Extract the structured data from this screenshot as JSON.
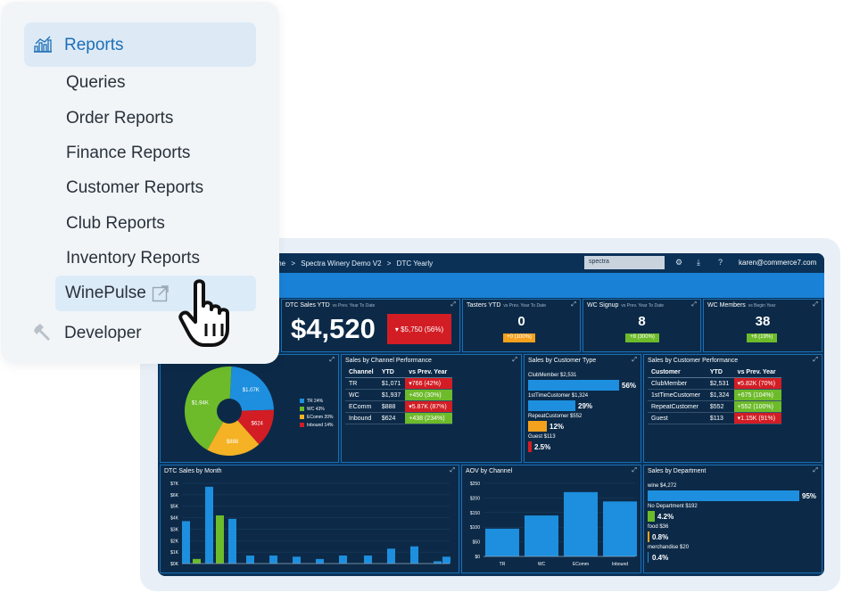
{
  "menu": {
    "header": "Reports",
    "items": [
      "Queries",
      "Order Reports",
      "Finance Reports",
      "Customer Reports",
      "Club Reports",
      "Inventory Reports"
    ],
    "active_item": "WinePulse",
    "footer_item": "Developer"
  },
  "dashboard": {
    "breadcrumb": [
      "me",
      ">",
      "Spectra Winery Demo V2",
      ">",
      "DTC Yearly"
    ],
    "search_value": "spectra",
    "user_email": "karen@commerce7.com",
    "sales_ytd": {
      "title": "DTC Sales YTD",
      "subtitle": "vs Prev. Year To Date",
      "value": "$4,520",
      "change": "▾ $5,750 (56%)"
    },
    "kpis": [
      {
        "title": "Tasters YTD",
        "subtitle": "vs Prev. Year To Date",
        "value": "0",
        "change": "+0 (100%)",
        "color": "#f4a11d"
      },
      {
        "title": "WC Signup",
        "subtitle": "vs Prev. Year To Date",
        "value": "8",
        "change": "+8 (300%)",
        "color": "#6dbb2a"
      },
      {
        "title": "WC Members",
        "subtitle": "vs Begin Year",
        "value": "38",
        "change": "+6 (19%)",
        "color": "#6dbb2a"
      }
    ],
    "pie": {
      "slices": [
        {
          "label": "$1.07K",
          "pct": 24,
          "color": "#1d8fde"
        },
        {
          "label": "$624",
          "pct": 14,
          "color": "#d21d24"
        },
        {
          "label": "$888",
          "pct": 20,
          "color": "#f4b224"
        },
        {
          "label": "$1.94K",
          "pct": 43,
          "color": "#6dbb2a"
        }
      ],
      "legend": [
        {
          "label": "TR 24%",
          "color": "#1d8fde"
        },
        {
          "label": "WC 43%",
          "color": "#6dbb2a"
        },
        {
          "label": "EComm 20%",
          "color": "#f4b224"
        },
        {
          "label": "Inbound 14%",
          "color": "#d21d24"
        }
      ]
    },
    "channel_perf": {
      "title": "Sales by Channel Performance",
      "headers": [
        "Channel",
        "YTD",
        "vs Prev. Year"
      ],
      "rows": [
        {
          "name": "TR",
          "ytd": "$1,071",
          "change": "▾766 (42%)",
          "neg": true
        },
        {
          "name": "WC",
          "ytd": "$1,937",
          "change": "+450 (30%)",
          "neg": false
        },
        {
          "name": "EComm",
          "ytd": "$888",
          "change": "▾5.87K (87%)",
          "neg": true
        },
        {
          "name": "Inbound",
          "ytd": "$624",
          "change": "+438 (234%)",
          "neg": false
        }
      ]
    },
    "customer_type": {
      "title": "Sales by Customer Type",
      "items": [
        {
          "label": "ClubMember $2,531",
          "pct": "56%",
          "color": "#1d8fde"
        },
        {
          "label": "1stTimeCustomer $1,324",
          "pct": "29%",
          "color": "#1d8fde"
        },
        {
          "label": "RepeatCustomer $552",
          "pct": "12%",
          "color": "#f4a11d"
        },
        {
          "label": "Guest $113",
          "pct": "2.5%",
          "color": "#d21d24"
        }
      ]
    },
    "customer_perf": {
      "title": "Sales by Customer Performance",
      "headers": [
        "Customer",
        "YTD",
        "vs Prev. Year"
      ],
      "rows": [
        {
          "name": "ClubMember",
          "ytd": "$2,531",
          "change": "▾5.82K (70%)",
          "neg": true
        },
        {
          "name": "1stTimeCustomer",
          "ytd": "$1,324",
          "change": "+675 (104%)",
          "neg": false
        },
        {
          "name": "RepeatCustomer",
          "ytd": "$552",
          "change": "+552 (100%)",
          "neg": false
        },
        {
          "name": "Guest",
          "ytd": "$113",
          "change": "▾1.15K (91%)",
          "neg": true
        }
      ]
    },
    "department": {
      "title": "Sales by Department",
      "items": [
        {
          "label": "wine $4,272",
          "pct": "95%",
          "color": "#1d8fde"
        },
        {
          "label": "No Department $192",
          "pct": "4.2%",
          "color": "#6dbb2a"
        },
        {
          "label": "food $36",
          "pct": "0.8%",
          "color": "#f4a11d"
        },
        {
          "label": "merchandise $20",
          "pct": "0.4%",
          "color": "#1d8fde"
        }
      ]
    }
  },
  "chart_data": [
    {
      "type": "bar",
      "title": "DTC Sales by Month",
      "yticks": [
        "$0K",
        "$1K",
        "$2K",
        "$3K",
        "$4K",
        "$5K",
        "$6K",
        "$7K"
      ],
      "ylim": [
        0,
        7
      ],
      "series": [
        {
          "name": "month",
          "values": [
            3.7,
            0.4,
            6.7,
            4.2,
            3.9,
            0.7,
            0.7,
            0.6,
            0.4,
            0.7,
            0.7,
            1.3,
            1.5,
            0.2,
            0.6
          ],
          "colors": [
            "#1d8fde",
            "#6dbb2a",
            "#1d8fde",
            "#6dbb2a",
            "#1d8fde",
            "#1d8fde",
            "#1d8fde",
            "#1d8fde",
            "#1d8fde",
            "#1d8fde",
            "#1d8fde",
            "#1d8fde",
            "#1d8fde",
            "#1d8fde",
            "#1d8fde"
          ]
        }
      ]
    },
    {
      "type": "bar",
      "title": "AOV by Channel",
      "categories": [
        "TR",
        "WC",
        "EComm",
        "Inbound"
      ],
      "values": [
        95,
        140,
        220,
        188
      ],
      "yticks": [
        "$0",
        "$50",
        "$100",
        "$150",
        "$200",
        "$250"
      ],
      "ylim": [
        0,
        250
      ]
    }
  ]
}
